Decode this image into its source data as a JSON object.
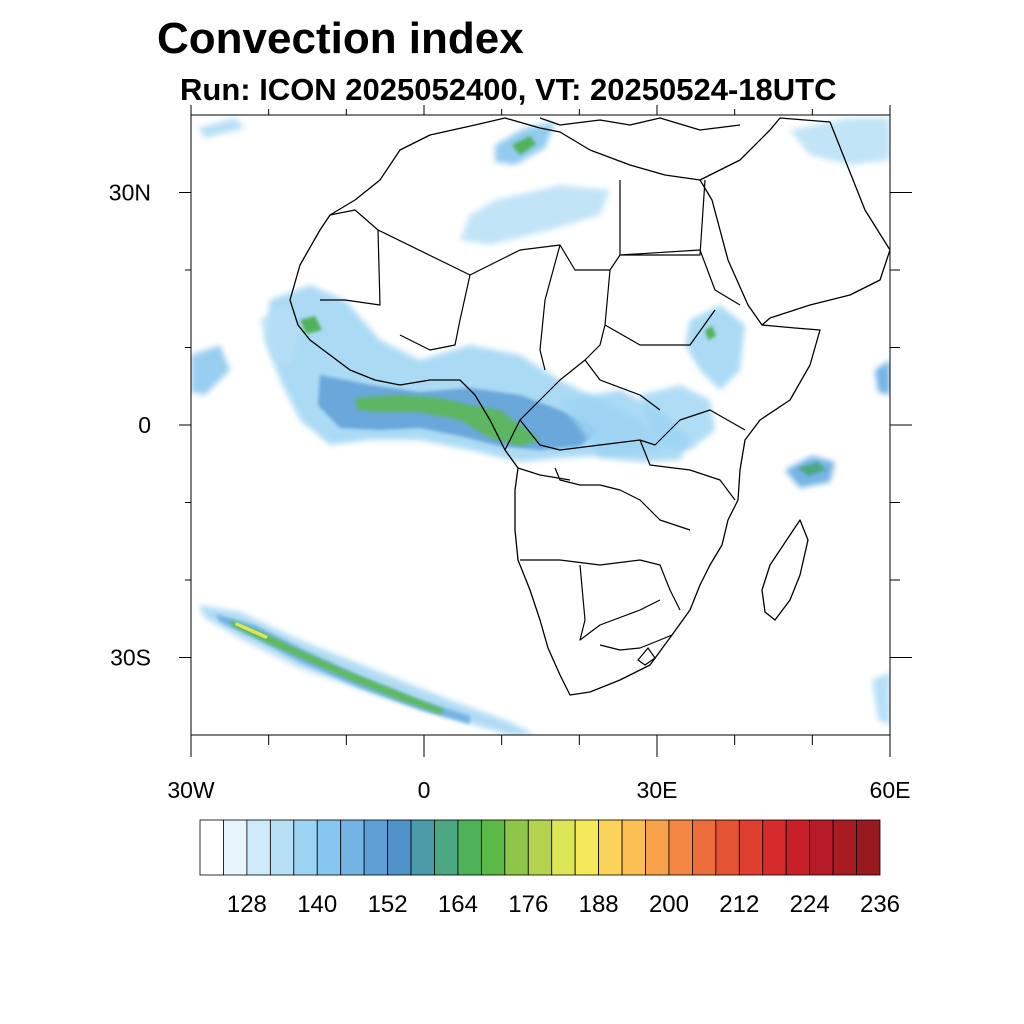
{
  "header": {
    "title": "Convection index",
    "subtitle": "Run: ICON 2025052400,  VT: 20250524-18UTC"
  },
  "map": {
    "projection": "lat-lon",
    "lon_range": [
      -30,
      60
    ],
    "lat_range": [
      -40,
      40
    ],
    "x_tick_labels": [
      {
        "lon": -30,
        "label": "30W"
      },
      {
        "lon": 0,
        "label": "0"
      },
      {
        "lon": 30,
        "label": "30E"
      },
      {
        "lon": 60,
        "label": "60E"
      }
    ],
    "y_tick_labels": [
      {
        "lat": 30,
        "label": "30N"
      },
      {
        "lat": 0,
        "label": "0"
      },
      {
        "lat": -30,
        "label": "30S"
      }
    ],
    "minor_lon_ticks": [
      -20,
      -10,
      10,
      20,
      40,
      50
    ],
    "minor_lat_ticks": [
      20,
      10,
      -10,
      -20
    ]
  },
  "colorbar": {
    "colors": [
      "#ffffff",
      "#e9f5fc",
      "#cfeaf8",
      "#b7e0f6",
      "#9dd4f3",
      "#87c6ee",
      "#74b4e5",
      "#5e9fd6",
      "#4f91c9",
      "#4b9aa8",
      "#4ba782",
      "#4fb258",
      "#5aba45",
      "#8ec64a",
      "#b3d24e",
      "#dde657",
      "#f4e95a",
      "#fbd35a",
      "#fbbf53",
      "#f7a14a",
      "#f28642",
      "#ec6c3a",
      "#e55432",
      "#de3e2e",
      "#d52b2b",
      "#c7202b",
      "#b71b28",
      "#a71b23",
      "#971b1e"
    ],
    "labels": [
      "128",
      "140",
      "152",
      "164",
      "176",
      "188",
      "200",
      "212",
      "224",
      "236"
    ]
  }
}
